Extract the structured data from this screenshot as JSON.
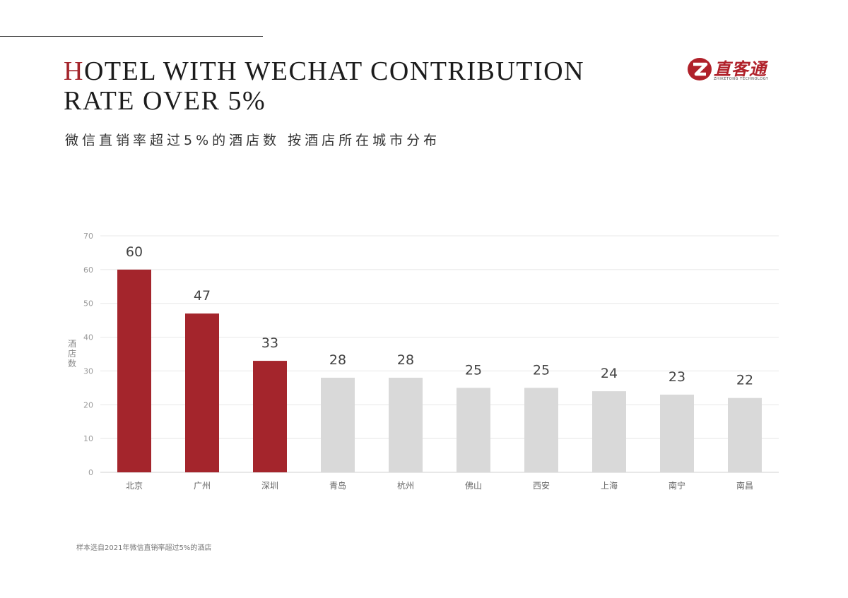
{
  "title": {
    "initial": "H",
    "line1_rest": "OTEL WITH WECHAT CONTRIBUTION",
    "line2": "RATE OVER 5%"
  },
  "subtitle": "微信直销率超过5%的酒店数 按酒店所在城市分布",
  "logo": {
    "name": "直客通",
    "tagline": "ZHIKETONG TECHNOLOGY",
    "mark_icon": "z-logo-icon"
  },
  "footnote": "样本选自2021年微信直销率超过5%的酒店",
  "colors": {
    "highlight": "#a4252c",
    "muted": "#d9d9d9",
    "accent": "#a4252c"
  },
  "chart_data": {
    "type": "bar",
    "ylabel": "酒店数",
    "ylim": [
      0,
      70
    ],
    "yticks": [
      0,
      10,
      20,
      30,
      40,
      50,
      60,
      70
    ],
    "categories": [
      "北京",
      "广州",
      "深圳",
      "青岛",
      "杭州",
      "佛山",
      "西安",
      "上海",
      "南宁",
      "南昌"
    ],
    "values": [
      60,
      47,
      33,
      28,
      28,
      25,
      25,
      24,
      23,
      22
    ],
    "highlighted": [
      true,
      true,
      true,
      false,
      false,
      false,
      false,
      false,
      false,
      false
    ],
    "grid": true,
    "data_labels": true
  }
}
